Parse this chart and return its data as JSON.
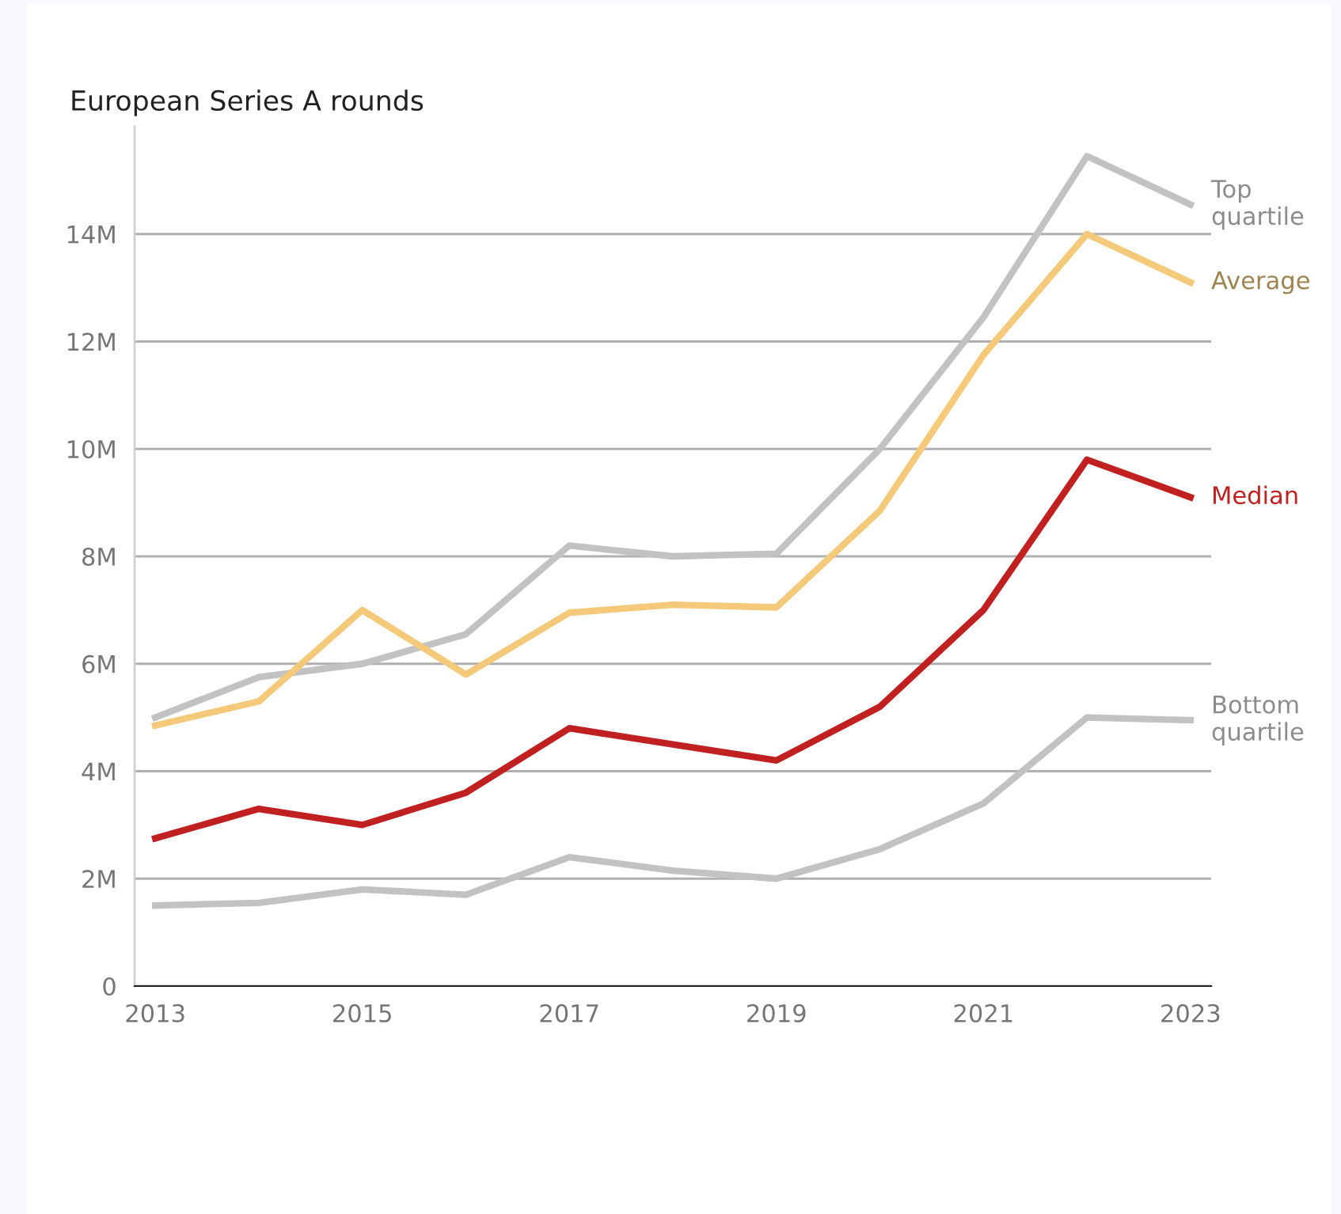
{
  "chart_data": {
    "type": "line",
    "title": "European Series A rounds",
    "x": [
      2013,
      2014,
      2015,
      2016,
      2017,
      2018,
      2019,
      2020,
      2021,
      2022,
      2023
    ],
    "series": [
      {
        "name": "Top quartile",
        "color": "#c2c2c2",
        "values": [
          5.0,
          5.75,
          6.0,
          6.55,
          8.2,
          8.0,
          8.05,
          10.0,
          12.45,
          15.45,
          14.55
        ]
      },
      {
        "name": "Average",
        "color": "#f5c97a",
        "values": [
          4.85,
          5.3,
          7.0,
          5.8,
          6.95,
          7.1,
          7.05,
          8.85,
          11.75,
          14.0,
          13.1
        ]
      },
      {
        "name": "Median",
        "color": "#c0201f",
        "values": [
          2.75,
          3.3,
          3.0,
          3.6,
          4.8,
          4.5,
          4.2,
          5.2,
          7.0,
          9.8,
          9.1
        ]
      },
      {
        "name": "Bottom quartile",
        "color": "#c2c2c2",
        "values": [
          1.5,
          1.55,
          1.8,
          1.7,
          2.4,
          2.15,
          2.0,
          2.55,
          3.4,
          5.0,
          4.95
        ]
      }
    ],
    "xlim": [
      2012.8,
      2023.2
    ],
    "xticks": [
      2013,
      2015,
      2017,
      2019,
      2021,
      2023
    ],
    "ylim": [
      0,
      16
    ],
    "yticks": [
      0,
      {
        "value": 2,
        "label": "2M"
      },
      {
        "value": 4,
        "label": "4M"
      },
      {
        "value": 6,
        "label": "6M"
      },
      {
        "value": 8,
        "label": "8M"
      },
      {
        "value": 10,
        "label": "10M"
      },
      {
        "value": 12,
        "label": "12M"
      },
      {
        "value": 14,
        "label": "14M"
      }
    ],
    "grid": "y",
    "legend": "right",
    "marker": "none",
    "line_style": "solid"
  }
}
